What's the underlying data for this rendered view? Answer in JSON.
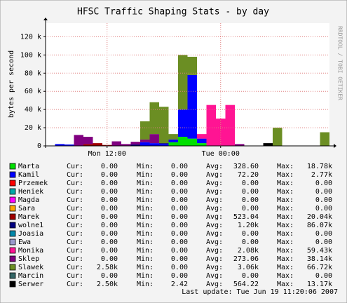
{
  "chart_data": {
    "type": "area",
    "stacked": true,
    "title": "HFSC Traffic Shaping Stats - by day",
    "y_label": "bytes per second",
    "watermark": "RRDTOOL / TOBI OETIKER",
    "last_update": "Last update: Tue Jun 19 11:20:06 2007",
    "stat_labels": [
      "Cur:",
      "Min:",
      "Avg:",
      "Max:"
    ],
    "categories": [
      null,
      null,
      null,
      null,
      null,
      null,
      "Mon 12:00",
      null,
      null,
      null,
      null,
      null,
      null,
      null,
      null,
      null,
      null,
      null,
      "Tue 00:00",
      null,
      null,
      null,
      null,
      null,
      null,
      null,
      null,
      null,
      null,
      null
    ],
    "ylim": [
      0,
      135000
    ],
    "yticks": [
      0,
      {
        "value": 20000,
        "label": "20 k"
      },
      {
        "value": 40000,
        "label": "40 k"
      },
      {
        "value": 60000,
        "label": "60 k"
      },
      {
        "value": 80000,
        "label": "80 k"
      },
      {
        "value": 100000,
        "label": "100 k"
      },
      {
        "value": 120000,
        "label": "120 k"
      }
    ],
    "grid": true,
    "series": [
      {
        "name": "Marta",
        "color": "#00e000",
        "cur": "0.00",
        "min": "0.00",
        "avg": "328.60",
        "max": "18.78k",
        "values": [
          0,
          0,
          0,
          0,
          0,
          0,
          0,
          0,
          0,
          0,
          0,
          0,
          0,
          4000,
          10000,
          8000,
          3000,
          0,
          0,
          0,
          0,
          0,
          0,
          0,
          0,
          0,
          0,
          0,
          0,
          0
        ]
      },
      {
        "name": "Kamil",
        "color": "#0000ff",
        "cur": "0.00",
        "min": "0.00",
        "avg": "72.20",
        "max": "2.77k",
        "values": [
          0,
          2000,
          1500,
          0,
          0,
          0,
          0,
          0,
          0,
          0,
          4000,
          3000,
          2000,
          3000,
          30000,
          70000,
          5000,
          0,
          0,
          0,
          0,
          0,
          0,
          0,
          0,
          0,
          0,
          0,
          0,
          0
        ]
      },
      {
        "name": "Przemek",
        "color": "#ff0000",
        "cur": "0.00",
        "min": "0.00",
        "avg": "0.00",
        "max": "0.00",
        "values": [
          0,
          0,
          0,
          0,
          0,
          0,
          0,
          0,
          0,
          0,
          0,
          0,
          0,
          0,
          0,
          0,
          0,
          0,
          0,
          0,
          0,
          0,
          0,
          0,
          0,
          0,
          0,
          0,
          0,
          0
        ]
      },
      {
        "name": "Heniek",
        "color": "#00a8a8",
        "cur": "0.00",
        "min": "0.00",
        "avg": "0.00",
        "max": "0.00",
        "values": [
          0,
          0,
          0,
          0,
          0,
          0,
          0,
          0,
          0,
          0,
          0,
          0,
          0,
          0,
          0,
          0,
          0,
          0,
          0,
          0,
          0,
          0,
          0,
          0,
          0,
          0,
          0,
          0,
          0,
          0
        ]
      },
      {
        "name": "Magda",
        "color": "#ff00ff",
        "cur": "0.00",
        "min": "0.00",
        "avg": "0.00",
        "max": "0.00",
        "values": [
          0,
          0,
          0,
          0,
          0,
          0,
          0,
          0,
          0,
          0,
          0,
          0,
          0,
          0,
          0,
          0,
          0,
          0,
          0,
          0,
          0,
          0,
          0,
          0,
          0,
          0,
          0,
          0,
          0,
          0
        ]
      },
      {
        "name": "Sara",
        "color": "#ffa500",
        "cur": "0.00",
        "min": "0.00",
        "avg": "0.00",
        "max": "0.00",
        "values": [
          0,
          0,
          0,
          0,
          0,
          0,
          0,
          0,
          0,
          0,
          0,
          0,
          0,
          0,
          0,
          0,
          0,
          0,
          0,
          0,
          0,
          0,
          0,
          0,
          0,
          0,
          0,
          0,
          0,
          0
        ]
      },
      {
        "name": "Marek",
        "color": "#a00000",
        "cur": "0.00",
        "min": "0.00",
        "avg": "523.04",
        "max": "20.04k",
        "values": [
          0,
          0,
          0,
          0,
          2000,
          3000,
          1000,
          0,
          0,
          0,
          0,
          0,
          0,
          0,
          0,
          0,
          0,
          0,
          0,
          0,
          0,
          0,
          0,
          0,
          0,
          0,
          0,
          0,
          0,
          0
        ]
      },
      {
        "name": "wolne1",
        "color": "#000080",
        "cur": "0.00",
        "min": "0.00",
        "avg": "1.20k",
        "max": "86.07k",
        "values": [
          0,
          0,
          0,
          0,
          0,
          0,
          0,
          0,
          0,
          1500,
          0,
          0,
          1000,
          0,
          0,
          0,
          0,
          0,
          0,
          0,
          0,
          0,
          0,
          0,
          0,
          0,
          0,
          0,
          0,
          0
        ]
      },
      {
        "name": "Joasia",
        "color": "#0088aa",
        "cur": "0.00",
        "min": "0.00",
        "avg": "0.00",
        "max": "0.00",
        "values": [
          0,
          0,
          0,
          0,
          0,
          0,
          0,
          0,
          0,
          0,
          0,
          0,
          0,
          0,
          0,
          0,
          0,
          0,
          0,
          0,
          0,
          0,
          0,
          0,
          0,
          0,
          0,
          0,
          0,
          0
        ]
      },
      {
        "name": "Ewa",
        "color": "#9999cc",
        "cur": "0.00",
        "min": "0.00",
        "avg": "0.00",
        "max": "0.00",
        "values": [
          0,
          0,
          0,
          0,
          0,
          0,
          0,
          0,
          0,
          0,
          0,
          0,
          0,
          0,
          0,
          0,
          0,
          0,
          0,
          0,
          0,
          0,
          0,
          0,
          0,
          0,
          0,
          0,
          0,
          0
        ]
      },
      {
        "name": "Monika",
        "color": "#ff1493",
        "cur": "0.00",
        "min": "0.00",
        "avg": "2.08k",
        "max": "59.43k",
        "values": [
          0,
          0,
          0,
          0,
          0,
          0,
          0,
          0,
          0,
          0,
          0,
          0,
          0,
          0,
          0,
          0,
          5000,
          45000,
          30000,
          45000,
          0,
          0,
          0,
          0,
          0,
          0,
          0,
          0,
          0,
          0
        ]
      },
      {
        "name": "Sklep",
        "color": "#800080",
        "cur": "0.00",
        "min": "0.00",
        "avg": "273.06",
        "max": "38.14k",
        "values": [
          0,
          0,
          0,
          12000,
          8000,
          0,
          0,
          5000,
          2000,
          3000,
          3000,
          10000,
          0,
          0,
          0,
          0,
          0,
          0,
          0,
          0,
          2000,
          0,
          0,
          0,
          0,
          0,
          0,
          0,
          0,
          0
        ]
      },
      {
        "name": "Slawek",
        "color": "#6b8e23",
        "cur": "2.58k",
        "min": "0.00",
        "avg": "3.06k",
        "max": "66.72k",
        "values": [
          0,
          0,
          0,
          0,
          0,
          0,
          0,
          0,
          0,
          0,
          20000,
          35000,
          40000,
          6000,
          60000,
          20000,
          0,
          0,
          0,
          0,
          0,
          0,
          0,
          0,
          20000,
          0,
          0,
          0,
          0,
          15000
        ]
      },
      {
        "name": "Marcin",
        "color": "#336666",
        "cur": "0.00",
        "min": "0.00",
        "avg": "0.00",
        "max": "0.00",
        "values": [
          0,
          0,
          0,
          0,
          0,
          0,
          0,
          0,
          0,
          0,
          0,
          0,
          0,
          0,
          0,
          0,
          0,
          0,
          0,
          0,
          0,
          0,
          0,
          0,
          0,
          0,
          0,
          0,
          0,
          0
        ]
      },
      {
        "name": "Serwer",
        "color": "#000000",
        "cur": "2.50k",
        "min": "2.42",
        "avg": "564.22",
        "max": "13.17k",
        "values": [
          0,
          0,
          0,
          0,
          0,
          0,
          0,
          0,
          0,
          0,
          0,
          0,
          0,
          0,
          0,
          0,
          0,
          0,
          0,
          0,
          0,
          0,
          0,
          3000,
          0,
          0,
          0,
          0,
          0,
          0
        ]
      }
    ]
  }
}
